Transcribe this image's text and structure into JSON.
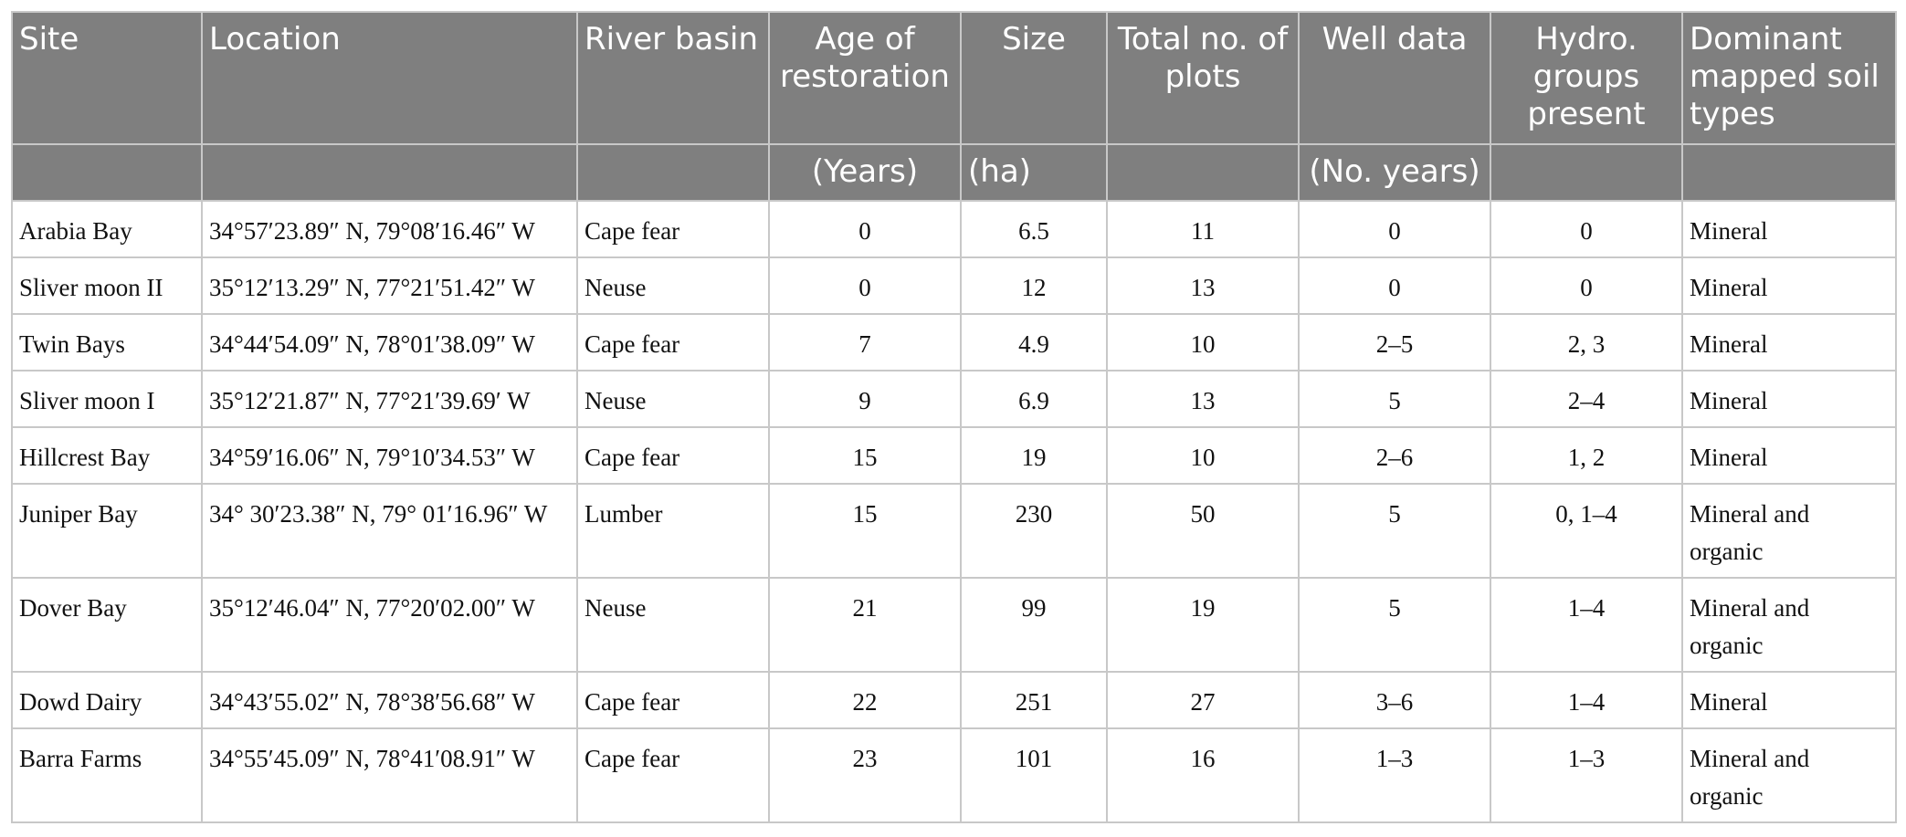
{
  "headers": {
    "site": "Site",
    "location": "Location",
    "river_basin": "River basin",
    "age": "Age of restoration",
    "size": "Size",
    "plots": "Total no. of plots",
    "well": "Well data",
    "hydro": "Hydro. groups present",
    "soil": "Dominant mapped soil types"
  },
  "units": {
    "age": "(Years)",
    "size": "(ha)",
    "well": "(No. years)"
  },
  "rows": [
    {
      "site": "Arabia Bay",
      "location": "34°57′23.89″ N, 79°08′16.46″ W",
      "basin": "Cape fear",
      "age": "0",
      "size": "6.5",
      "plots": "11",
      "well": "0",
      "hydro": "0",
      "soil": "Mineral"
    },
    {
      "site": "Sliver moon II",
      "location": "35°12′13.29″ N, 77°21′51.42″ W",
      "basin": "Neuse",
      "age": "0",
      "size": "12",
      "plots": "13",
      "well": "0",
      "hydro": "0",
      "soil": "Mineral"
    },
    {
      "site": "Twin Bays",
      "location": "34°44′54.09″ N, 78°01′38.09″ W",
      "basin": "Cape fear",
      "age": "7",
      "size": "4.9",
      "plots": "10",
      "well": "2–5",
      "hydro": "2, 3",
      "soil": "Mineral"
    },
    {
      "site": "Sliver moon I",
      "location": "35°12′21.87″ N, 77°21′39.69′ W",
      "basin": "Neuse",
      "age": "9",
      "size": "6.9",
      "plots": "13",
      "well": "5",
      "hydro": "2–4",
      "soil": "Mineral"
    },
    {
      "site": "Hillcrest Bay",
      "location": "34°59′16.06″ N, 79°10′34.53″ W",
      "basin": "Cape fear",
      "age": "15",
      "size": "19",
      "plots": "10",
      "well": "2–6",
      "hydro": "1, 2",
      "soil": "Mineral"
    },
    {
      "site": "Juniper Bay",
      "location": "34° 30′23.38″ N, 79° 01′16.96″ W",
      "basin": "Lumber",
      "age": "15",
      "size": "230",
      "plots": "50",
      "well": "5",
      "hydro": "0, 1–4",
      "soil": "Mineral and organic"
    },
    {
      "site": "Dover Bay",
      "location": "35°12′46.04″ N, 77°20′02.00″ W",
      "basin": "Neuse",
      "age": "21",
      "size": "99",
      "plots": "19",
      "well": "5",
      "hydro": "1–4",
      "soil": "Mineral and organic"
    },
    {
      "site": "Dowd Dairy",
      "location": "34°43′55.02″ N, 78°38′56.68″ W",
      "basin": "Cape fear",
      "age": "22",
      "size": "251",
      "plots": "27",
      "well": "3–6",
      "hydro": "1–4",
      "soil": "Mineral"
    },
    {
      "site": "Barra Farms",
      "location": "34°55′45.09″ N, 78°41′08.91″ W",
      "basin": "Cape fear",
      "age": "23",
      "size": "101",
      "plots": "16",
      "well": "1–3",
      "hydro": "1–3",
      "soil": "Mineral and organic"
    }
  ],
  "colors": {
    "header_bg": "#7f7f7f",
    "header_text": "#ffffff",
    "grid": "#c8c8c8"
  }
}
